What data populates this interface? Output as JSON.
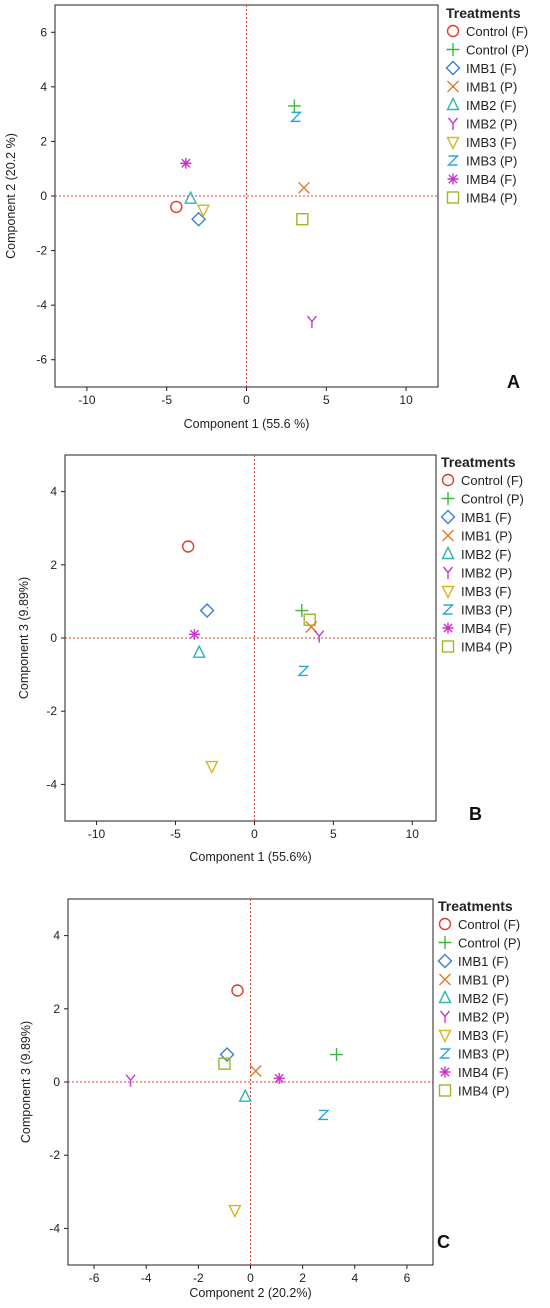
{
  "legend_title": "Treatments",
  "colors": {
    "Control (F)": "#e03c31",
    "Control (P)": "#3cb93c",
    "IMB1 (F)": "#3a7fd5",
    "IMB1 (P)": "#e07a2a",
    "IMB2 (F)": "#2fb5b0",
    "IMB2 (P)": "#c03ad0",
    "IMB3 (F)": "#d5b81e",
    "IMB3 (P)": "#29a8d8",
    "IMB4 (F)": "#cc33cc",
    "IMB4 (P)": "#9ab82a"
  },
  "markers": {
    "Control (F)": "circle",
    "Control (P)": "plus",
    "IMB1 (F)": "diamond",
    "IMB1 (P)": "cross",
    "IMB2 (F)": "triangle-up",
    "IMB2 (P)": "y",
    "IMB3 (F)": "triangle-down",
    "IMB3 (P)": "z",
    "IMB4 (F)": "asterisk",
    "IMB4 (P)": "square"
  },
  "chart_data": [
    {
      "type": "scatter",
      "panel_label": "A",
      "xlabel": "Component 1  (55.6 %)",
      "ylabel": "Component 2  (20.2 %)",
      "xlim": [
        -12,
        12
      ],
      "ylim": [
        -7,
        7
      ],
      "xticks": [
        -10,
        -5,
        0,
        5,
        10
      ],
      "yticks": [
        -6,
        -4,
        -2,
        0,
        2,
        4,
        6
      ],
      "reference_lines": {
        "x": 0,
        "y": 0
      },
      "legend_position": "right",
      "series": [
        {
          "name": "Control (F)",
          "x": -4.4,
          "y": -0.4
        },
        {
          "name": "Control (P)",
          "x": 3.0,
          "y": 3.3
        },
        {
          "name": "IMB1 (F)",
          "x": -3.0,
          "y": -0.85
        },
        {
          "name": "IMB1 (P)",
          "x": 3.6,
          "y": 0.3
        },
        {
          "name": "IMB2 (F)",
          "x": -3.5,
          "y": -0.1
        },
        {
          "name": "IMB2 (P)",
          "x": 4.1,
          "y": -4.6
        },
        {
          "name": "IMB3 (F)",
          "x": -2.7,
          "y": -0.5
        },
        {
          "name": "IMB3 (P)",
          "x": 3.1,
          "y": 2.9
        },
        {
          "name": "IMB4 (F)",
          "x": -3.8,
          "y": 1.2
        },
        {
          "name": "IMB4 (P)",
          "x": 3.5,
          "y": -0.85
        }
      ]
    },
    {
      "type": "scatter",
      "panel_label": "B",
      "xlabel": "Component 1  (55.6%)",
      "ylabel": "Component 3  (9.89%)",
      "xlim": [
        -12,
        11.5
      ],
      "ylim": [
        -5,
        5
      ],
      "xticks": [
        -10,
        -5,
        0,
        5,
        10
      ],
      "yticks": [
        -4,
        -2,
        0,
        2,
        4
      ],
      "reference_lines": {
        "x": 0,
        "y": 0
      },
      "legend_position": "right",
      "series": [
        {
          "name": "Control (F)",
          "x": -4.2,
          "y": 2.5
        },
        {
          "name": "Control (P)",
          "x": 3.0,
          "y": 0.75
        },
        {
          "name": "IMB1 (F)",
          "x": -3.0,
          "y": 0.75
        },
        {
          "name": "IMB1 (P)",
          "x": 3.6,
          "y": 0.3
        },
        {
          "name": "IMB2 (F)",
          "x": -3.5,
          "y": -0.4
        },
        {
          "name": "IMB2 (P)",
          "x": 4.1,
          "y": 0.05
        },
        {
          "name": "IMB3 (F)",
          "x": -2.7,
          "y": -3.5
        },
        {
          "name": "IMB3 (P)",
          "x": 3.1,
          "y": -0.9
        },
        {
          "name": "IMB4 (F)",
          "x": -3.8,
          "y": 0.1
        },
        {
          "name": "IMB4 (P)",
          "x": 3.5,
          "y": 0.5
        }
      ]
    },
    {
      "type": "scatter",
      "panel_label": "C",
      "xlabel": "Component 2  (20.2%)",
      "ylabel": "Component 3  (9.89%)",
      "xlim": [
        -7,
        7
      ],
      "ylim": [
        -5,
        5
      ],
      "xticks": [
        -6,
        -4,
        -2,
        0,
        2,
        4,
        6
      ],
      "yticks": [
        -4,
        -2,
        0,
        2,
        4
      ],
      "reference_lines": {
        "x": 0,
        "y": 0
      },
      "legend_position": "right",
      "series": [
        {
          "name": "Control (F)",
          "x": -0.5,
          "y": 2.5
        },
        {
          "name": "Control (P)",
          "x": 3.3,
          "y": 0.75
        },
        {
          "name": "IMB1 (F)",
          "x": -0.9,
          "y": 0.75
        },
        {
          "name": "IMB1 (P)",
          "x": 0.2,
          "y": 0.3
        },
        {
          "name": "IMB2 (F)",
          "x": -0.2,
          "y": -0.4
        },
        {
          "name": "IMB2 (P)",
          "x": -4.6,
          "y": 0.05
        },
        {
          "name": "IMB3 (F)",
          "x": -0.6,
          "y": -3.5
        },
        {
          "name": "IMB3 (P)",
          "x": 2.8,
          "y": -0.9
        },
        {
          "name": "IMB4 (F)",
          "x": 1.1,
          "y": 0.1
        },
        {
          "name": "IMB4 (P)",
          "x": -1.0,
          "y": 0.5
        }
      ]
    }
  ]
}
